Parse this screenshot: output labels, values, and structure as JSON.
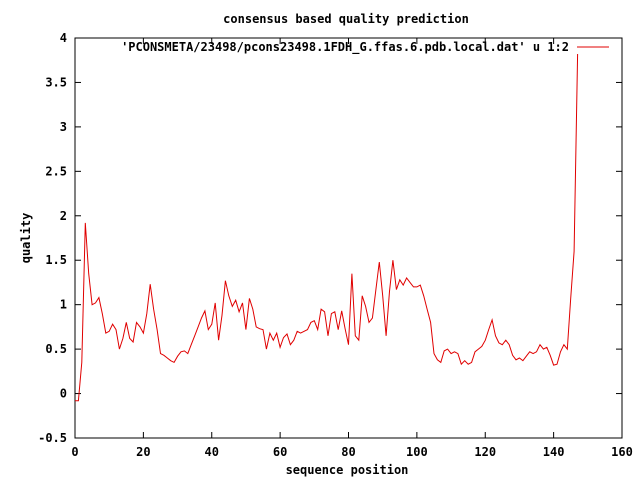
{
  "chart_data": {
    "type": "line",
    "title": "consensus based quality prediction",
    "xlabel": "sequence position",
    "ylabel": "quality",
    "xlim": [
      0,
      160
    ],
    "ylim": [
      -0.5,
      4
    ],
    "xticks": [
      0,
      20,
      40,
      60,
      80,
      100,
      120,
      140,
      160
    ],
    "xtick_labels": [
      "0",
      "20",
      "40",
      "60",
      "80",
      "100",
      "120",
      "140",
      "160"
    ],
    "yticks": [
      -0.5,
      0,
      0.5,
      1,
      1.5,
      2,
      2.5,
      3,
      3.5,
      4
    ],
    "ytick_labels": [
      "-0.5",
      "0",
      "0.5",
      "1",
      "1.5",
      "2",
      "2.5",
      "3",
      "3.5",
      "4"
    ],
    "grid": false,
    "legend_position": "top-right",
    "series": [
      {
        "name": "'PCONSMETA/23498/pcons23498.1FDH_G.ffas.6.pdb.local.dat' u 1:2",
        "color": "#e00000",
        "x": [
          0,
          1,
          2,
          3,
          4,
          5,
          6,
          7,
          8,
          9,
          10,
          11,
          12,
          13,
          14,
          15,
          16,
          17,
          18,
          19,
          20,
          21,
          22,
          23,
          24,
          25,
          26,
          27,
          28,
          29,
          30,
          31,
          32,
          33,
          34,
          35,
          36,
          37,
          38,
          39,
          40,
          41,
          42,
          43,
          44,
          45,
          46,
          47,
          48,
          49,
          50,
          51,
          52,
          53,
          54,
          55,
          56,
          57,
          58,
          59,
          60,
          61,
          62,
          63,
          64,
          65,
          66,
          67,
          68,
          69,
          70,
          71,
          72,
          73,
          74,
          75,
          76,
          77,
          78,
          79,
          80,
          81,
          82,
          83,
          84,
          85,
          86,
          87,
          88,
          89,
          90,
          91,
          92,
          93,
          94,
          95,
          96,
          97,
          98,
          99,
          100,
          101,
          102,
          103,
          104,
          105,
          106,
          107,
          108,
          109,
          110,
          111,
          112,
          113,
          114,
          115,
          116,
          117,
          118,
          119,
          120,
          121,
          122,
          123,
          124,
          125,
          126,
          127,
          128,
          129,
          130,
          131,
          132,
          133,
          134,
          135,
          136,
          137,
          138,
          139,
          140,
          141,
          142,
          143,
          144,
          145,
          146,
          147
        ],
        "values": [
          -0.08,
          -0.08,
          0.35,
          1.92,
          1.35,
          1.0,
          1.02,
          1.08,
          0.9,
          0.68,
          0.7,
          0.78,
          0.72,
          0.5,
          0.62,
          0.8,
          0.62,
          0.58,
          0.8,
          0.75,
          0.68,
          0.9,
          1.23,
          0.95,
          0.72,
          0.45,
          0.43,
          0.4,
          0.37,
          0.35,
          0.42,
          0.47,
          0.48,
          0.45,
          0.55,
          0.65,
          0.75,
          0.85,
          0.93,
          0.72,
          0.78,
          1.02,
          0.6,
          0.88,
          1.27,
          1.1,
          0.98,
          1.05,
          0.92,
          1.02,
          0.72,
          1.07,
          0.95,
          0.75,
          0.73,
          0.72,
          0.5,
          0.68,
          0.6,
          0.68,
          0.52,
          0.63,
          0.67,
          0.55,
          0.6,
          0.7,
          0.68,
          0.7,
          0.72,
          0.8,
          0.82,
          0.72,
          0.95,
          0.92,
          0.65,
          0.9,
          0.92,
          0.72,
          0.93,
          0.73,
          0.55,
          1.35,
          0.65,
          0.6,
          1.1,
          0.98,
          0.8,
          0.85,
          1.17,
          1.48,
          1.1,
          0.65,
          1.15,
          1.5,
          1.17,
          1.28,
          1.22,
          1.3,
          1.25,
          1.2,
          1.2,
          1.22,
          1.1,
          0.95,
          0.8,
          0.45,
          0.38,
          0.35,
          0.48,
          0.5,
          0.45,
          0.47,
          0.45,
          0.33,
          0.37,
          0.33,
          0.35,
          0.47,
          0.5,
          0.53,
          0.6,
          0.72,
          0.83,
          0.65,
          0.57,
          0.55,
          0.6,
          0.55,
          0.43,
          0.38,
          0.4,
          0.37,
          0.42,
          0.47,
          0.45,
          0.47,
          0.55,
          0.5,
          0.52,
          0.43,
          0.32,
          0.33,
          0.47,
          0.55,
          0.5,
          1.07,
          1.6,
          3.82
        ]
      }
    ]
  }
}
